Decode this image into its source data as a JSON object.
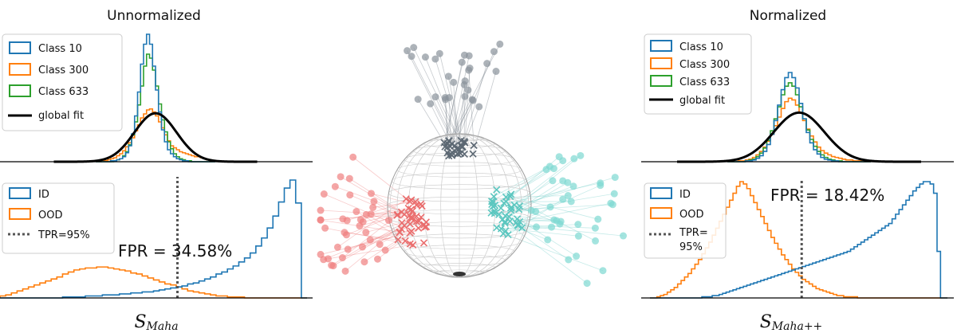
{
  "chart_data": [
    {
      "type": "histogram",
      "panel": "top-left",
      "title": "Unnormalized",
      "legend": [
        "Class 10",
        "Class 300",
        "Class 633",
        "global fit"
      ],
      "legend_position": "top-left",
      "series": [
        {
          "name": "Class 10",
          "color": "#1f77b4",
          "values": [
            0,
            0,
            0,
            0,
            0,
            1,
            1,
            2,
            3,
            5,
            9,
            16,
            28,
            46,
            70,
            98,
            118,
            128,
            118,
            96,
            72,
            50,
            32,
            20,
            12,
            8,
            5,
            3,
            2,
            1,
            1,
            0,
            0,
            0,
            0,
            0,
            0,
            0,
            0,
            0
          ]
        },
        {
          "name": "Class 300",
          "color": "#ff7f0e",
          "values": [
            0,
            0,
            1,
            1,
            2,
            3,
            4,
            6,
            8,
            11,
            15,
            19,
            24,
            31,
            37,
            44,
            48,
            52,
            53,
            50,
            46,
            40,
            34,
            27,
            21,
            16,
            14,
            12,
            10,
            9,
            8,
            7,
            6,
            5,
            5,
            4,
            3,
            2,
            1,
            1
          ]
        },
        {
          "name": "Class 633",
          "color": "#2ca02c",
          "values": [
            0,
            0,
            0,
            0,
            0,
            0,
            1,
            2,
            3,
            6,
            10,
            17,
            27,
            40,
            57,
            76,
            96,
            108,
            104,
            92,
            76,
            58,
            42,
            30,
            20,
            13,
            8,
            5,
            3,
            2,
            1,
            1,
            0,
            0,
            0,
            0,
            0,
            0,
            0,
            0
          ]
        }
      ],
      "global_fit": {
        "name": "global fit",
        "color": "#000000",
        "mean": 0.5,
        "std": 0.11
      }
    },
    {
      "type": "histogram",
      "panel": "bottom-left",
      "xlabel": "S",
      "xlabel_sub": "Maha",
      "legend": [
        "ID",
        "OOD",
        "TPR=95%"
      ],
      "legend_position": "top-left",
      "threshold_fraction_of_axis": 0.5,
      "annotation": "FPR = 34.58%",
      "series": [
        {
          "name": "ID",
          "color": "#1f77b4",
          "values": [
            0,
            0,
            0,
            0,
            0,
            0,
            0,
            0,
            0,
            0,
            0,
            1,
            1,
            1,
            1,
            2,
            2,
            2,
            3,
            3,
            3,
            4,
            4,
            5,
            5,
            6,
            6,
            7,
            8,
            9,
            10,
            11,
            12,
            14,
            15,
            17,
            19,
            21,
            24,
            26,
            29,
            32,
            36,
            40,
            45,
            52,
            60,
            70,
            82,
            96,
            110,
            118,
            95,
            0
          ]
        },
        {
          "name": "OOD",
          "color": "#ff7f0e",
          "values": [
            2,
            3,
            5,
            7,
            9,
            11,
            13,
            15,
            17,
            19,
            21,
            24,
            26,
            28,
            29,
            30,
            30,
            31,
            31,
            30,
            29,
            28,
            27,
            25,
            24,
            22,
            20,
            18,
            16,
            14,
            13,
            11,
            9,
            7,
            6,
            5,
            4,
            3,
            2,
            2,
            1,
            1,
            1,
            0,
            0,
            0,
            0,
            0,
            0,
            0,
            0,
            0,
            0,
            0
          ]
        }
      ],
      "threshold_label": "TPR=95%"
    },
    {
      "type": "histogram",
      "panel": "top-right",
      "title": "Normalized",
      "legend": [
        "Class 10",
        "Class 300",
        "Class 633",
        "global fit"
      ],
      "legend_position": "top-left",
      "series": [
        {
          "name": "Class 10",
          "color": "#1f77b4",
          "values": [
            0,
            0,
            0,
            0,
            0,
            1,
            1,
            2,
            4,
            7,
            12,
            20,
            32,
            48,
            66,
            84,
            98,
            104,
            98,
            86,
            68,
            50,
            34,
            22,
            14,
            9,
            5,
            3,
            2,
            1,
            1,
            0,
            0,
            0,
            0,
            0,
            0,
            0,
            0,
            0
          ]
        },
        {
          "name": "Class 300",
          "color": "#ff7f0e",
          "values": [
            0,
            0,
            0,
            1,
            1,
            2,
            3,
            5,
            8,
            12,
            17,
            24,
            32,
            42,
            52,
            62,
            70,
            74,
            72,
            66,
            57,
            48,
            38,
            30,
            23,
            17,
            13,
            10,
            8,
            6,
            5,
            4,
            3,
            2,
            2,
            1,
            1,
            1,
            0,
            0
          ]
        },
        {
          "name": "Class 633",
          "color": "#2ca02c",
          "values": [
            0,
            0,
            0,
            0,
            0,
            1,
            2,
            3,
            6,
            10,
            16,
            25,
            36,
            50,
            64,
            78,
            88,
            92,
            88,
            78,
            64,
            50,
            37,
            26,
            18,
            12,
            8,
            5,
            3,
            2,
            1,
            1,
            0,
            0,
            0,
            0,
            0,
            0,
            0,
            0
          ]
        }
      ],
      "global_fit": {
        "name": "global fit",
        "color": "#000000",
        "mean": 0.5,
        "std": 0.11
      }
    },
    {
      "type": "histogram",
      "panel": "bottom-right",
      "xlabel": "S",
      "xlabel_sub": "Maha++",
      "legend": [
        "ID",
        "OOD",
        "TPR=",
        "95%"
      ],
      "legend_position": "top-left",
      "threshold_fraction_of_axis": 0.51,
      "annotation": "FPR = 18.42%",
      "series": [
        {
          "name": "ID",
          "color": "#1f77b4",
          "values": [
            0,
            0,
            0,
            0,
            0,
            0,
            0,
            0,
            0,
            0,
            0,
            0,
            0,
            0,
            0,
            1,
            1,
            1,
            2,
            2,
            3,
            4,
            5,
            6,
            7,
            8,
            9,
            10,
            11,
            12,
            13,
            14,
            15,
            16,
            17,
            18,
            19,
            20,
            21,
            22,
            23,
            24,
            25,
            26,
            27,
            28,
            29,
            30,
            31,
            32,
            33,
            34,
            35,
            36,
            37,
            38,
            39,
            40,
            42,
            44,
            46,
            48,
            50,
            52,
            54,
            56,
            58,
            60,
            62,
            64,
            68,
            72,
            76,
            80,
            84,
            88,
            92,
            95,
            98,
            100,
            100,
            98,
            90,
            40,
            0,
            0
          ]
        },
        {
          "name": "OOD",
          "color": "#ff7f0e",
          "values": [
            0,
            0,
            1,
            2,
            3,
            5,
            7,
            9,
            12,
            15,
            18,
            21,
            25,
            29,
            33,
            38,
            43,
            48,
            54,
            60,
            66,
            72,
            78,
            84,
            90,
            96,
            100,
            98,
            94,
            88,
            82,
            76,
            70,
            64,
            58,
            52,
            47,
            42,
            37,
            33,
            29,
            25,
            22,
            19,
            16,
            14,
            12,
            10,
            8,
            7,
            6,
            5,
            4,
            3,
            2,
            2,
            1,
            1,
            1,
            1,
            0,
            0,
            0,
            0,
            0,
            0,
            0,
            0,
            0,
            0,
            0,
            0,
            0,
            0,
            0,
            0,
            0,
            0,
            0,
            0,
            0,
            0,
            0,
            0,
            0,
            0
          ]
        }
      ],
      "threshold_label": "TPR=95%"
    },
    {
      "type": "scatter",
      "panel": "center",
      "description_note": "3D unit sphere with class features projected onto it",
      "series": [
        {
          "name": "gray",
          "color": "#5c6873",
          "marker_color": "#8a939b",
          "count": 30
        },
        {
          "name": "red",
          "color": "#ea6d6d",
          "marker_color": "#f08080",
          "count": 40
        },
        {
          "name": "teal",
          "color": "#5cc7c0",
          "marker_color": "#7dd8d2",
          "count": 40
        }
      ]
    }
  ]
}
